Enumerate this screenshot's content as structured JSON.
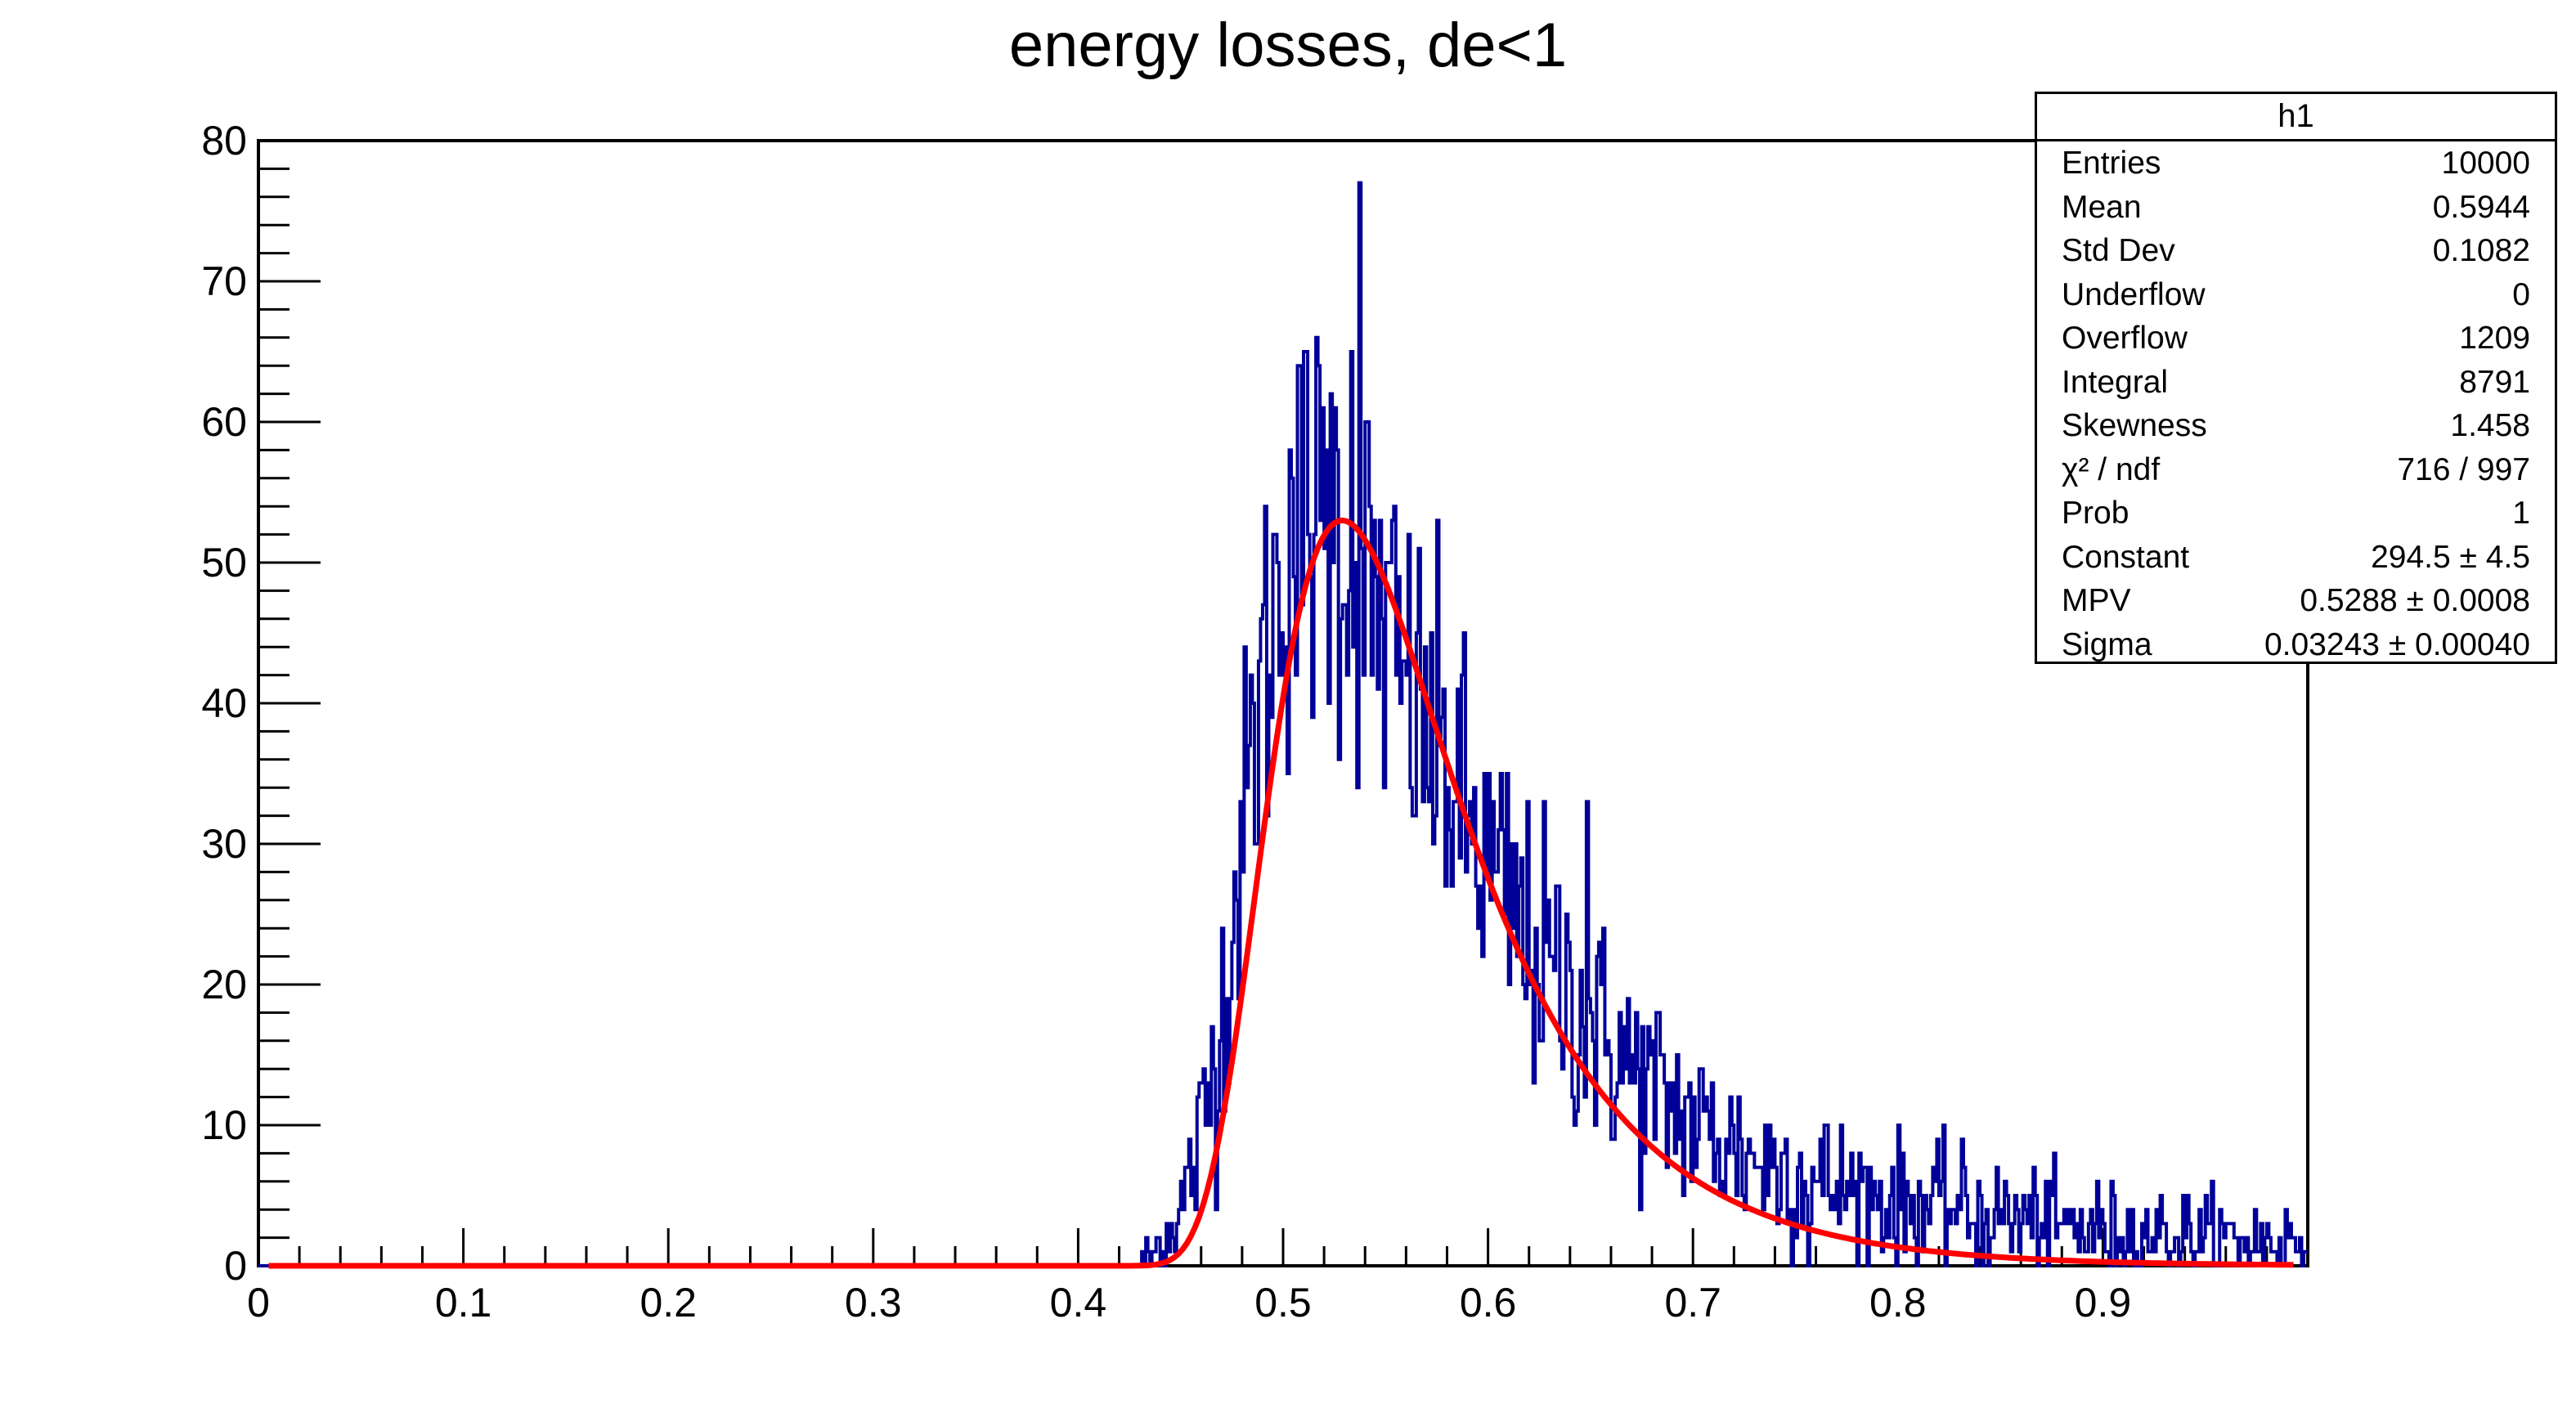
{
  "chart_data": {
    "type": "histogram",
    "title": "energy losses, de<1",
    "xlim": [
      0,
      1
    ],
    "ylim": [
      0,
      80
    ],
    "x_ticks": [
      "0",
      "0.1",
      "0.2",
      "0.3",
      "0.4",
      "0.5",
      "0.6",
      "0.7",
      "0.8",
      "0.9"
    ],
    "y_ticks": [
      "0",
      "10",
      "20",
      "30",
      "40",
      "50",
      "60",
      "70",
      "80"
    ],
    "bins": 1000,
    "histogram_color": "#000099",
    "fit_color": "#ff0000",
    "histogram_profile": [
      [
        0.43,
        0
      ],
      [
        0.44,
        1.5
      ],
      [
        0.45,
        4
      ],
      [
        0.46,
        9
      ],
      [
        0.47,
        18
      ],
      [
        0.48,
        30
      ],
      [
        0.49,
        42
      ],
      [
        0.5,
        50
      ],
      [
        0.51,
        53
      ],
      [
        0.52,
        53
      ],
      [
        0.53,
        52
      ],
      [
        0.54,
        49
      ],
      [
        0.55,
        45
      ],
      [
        0.56,
        41
      ],
      [
        0.58,
        35
      ],
      [
        0.6,
        28
      ],
      [
        0.62,
        23
      ],
      [
        0.64,
        19
      ],
      [
        0.66,
        15.5
      ],
      [
        0.68,
        12.5
      ],
      [
        0.7,
        10
      ],
      [
        0.72,
        8.5
      ],
      [
        0.74,
        7
      ],
      [
        0.76,
        6
      ],
      [
        0.8,
        4.5
      ],
      [
        0.85,
        3.5
      ],
      [
        0.9,
        2.5
      ],
      [
        0.95,
        2
      ],
      [
        1.0,
        1.7
      ]
    ],
    "notable_bins": [
      {
        "x": 0.537,
        "y": 77
      },
      {
        "x": 0.533,
        "y": 65
      },
      {
        "x": 0.523,
        "y": 62
      },
      {
        "x": 0.503,
        "y": 58
      },
      {
        "x": 0.648,
        "y": 33
      },
      {
        "x": 0.756,
        "y": 0
      }
    ],
    "fit": {
      "function": "landau",
      "constant": 294.5,
      "mpv": 0.5288,
      "sigma": 0.03243,
      "peak": {
        "x": 0.522,
        "y": 53
      }
    }
  },
  "stats_box": {
    "name": "h1",
    "rows": [
      {
        "label": "Entries",
        "value": "10000"
      },
      {
        "label": "Mean",
        "value": "0.5944"
      },
      {
        "label": "Std Dev",
        "value": "0.1082"
      },
      {
        "label": "Underflow",
        "value": "0"
      },
      {
        "label": "Overflow",
        "value": "1209"
      },
      {
        "label": "Integral",
        "value": "8791"
      },
      {
        "label": "Skewness",
        "value": "1.458"
      },
      {
        "label": "χ² / ndf",
        "value": "716 / 997"
      },
      {
        "label": "Prob",
        "value": "1"
      },
      {
        "label": "Constant",
        "value": "294.5 ± 4.5"
      },
      {
        "label": "MPV",
        "value": "0.5288 ± 0.0008"
      },
      {
        "label": "Sigma",
        "value": "0.03243 ± 0.00040"
      }
    ]
  }
}
